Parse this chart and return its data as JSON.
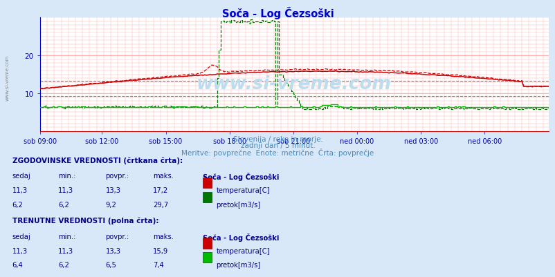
{
  "title": "Soča - Log Čezsoški",
  "subtitle1": "Slovenija / reke in morje.",
  "subtitle2": "zadnji dan / 5 minut.",
  "subtitle3": "Meritve: povprečne  Enote: metrične  Črta: povprečje",
  "background_color": "#d8e8f8",
  "plot_bg_color": "#ffffff",
  "x_labels": [
    "sob 09:00",
    "sob 12:00",
    "sob 15:00",
    "sob 18:00",
    "sob 21:00",
    "ned 00:00",
    "ned 03:00",
    "ned 06:00"
  ],
  "x_ticks_norm": [
    0.0,
    0.125,
    0.25,
    0.375,
    0.5,
    0.625,
    0.75,
    0.875
  ],
  "total_points": 288,
  "y_min": 0,
  "y_max": 30,
  "y_ticks": [
    10,
    20
  ],
  "title_color": "#0000cc",
  "subtitle_color": "#4488bb",
  "text_color": "#000088",
  "label_color": "#0000aa",
  "watermark": "www.si-vreme.com",
  "watermark_color": "#bbddee",
  "temp_hist_color": "#cc0000",
  "temp_curr_color": "#cc0000",
  "flow_hist_color": "#007700",
  "flow_curr_color": "#00bb00",
  "avg_temp_hist": 13.3,
  "avg_flow_hist": 9.2,
  "hist_table_header": "ZGODOVINSKE VREDNOSTI (črtkana črta):",
  "curr_table_header": "TRENUTNE VREDNOSTI (polna črta):",
  "col_headers_row": "sedaj\tmin.:\tpovpr.:\tmaks.\t",
  "hist_temp_vals": [
    "11,3",
    "11,3",
    "13,3",
    "17,2"
  ],
  "hist_flow_vals": [
    "6,2",
    "6,2",
    "9,2",
    "29,7"
  ],
  "curr_temp_vals": [
    "11,3",
    "11,3",
    "13,3",
    "15,9"
  ],
  "curr_flow_vals": [
    "6,4",
    "6,2",
    "6,5",
    "7,4"
  ],
  "hist_temp_label": "temperatura[C]",
  "hist_flow_label": "pretok[m3/s]",
  "curr_temp_label": "temperatura[C]",
  "curr_flow_label": "pretok[m3/s]",
  "station": "Soča - Log Čezsoški",
  "left_margin_label": "www.si-vreme.com"
}
